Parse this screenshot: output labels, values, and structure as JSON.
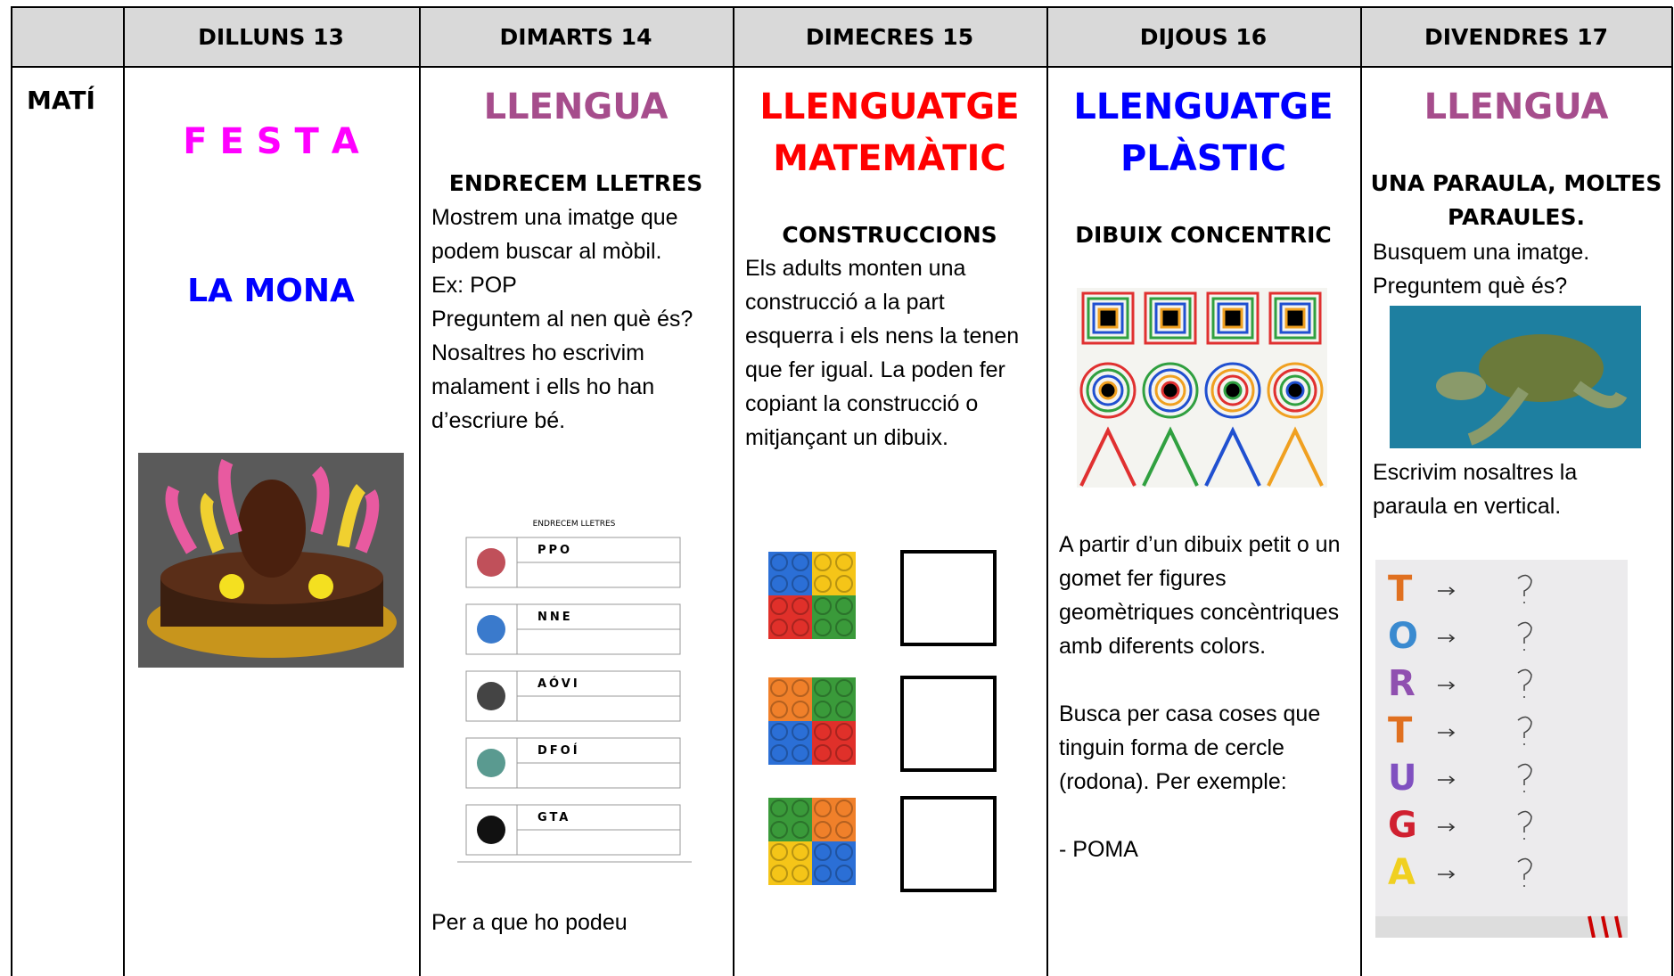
{
  "header": {
    "days": [
      "DILLUNS 13",
      "DIMARTS 14",
      "DIMECRES 15",
      "DIJOUS 16",
      "DIVENDRES 17"
    ]
  },
  "rows": [
    {
      "label": "MATÍ",
      "cells": [
        {
          "title": "F E S T A",
          "subtitle": "LA  MONA"
        },
        {
          "subject": "LLENGUA",
          "activity": "ENDRECEM LLETRES",
          "text": [
            "Mostrem una imatge que podem buscar al mòbil.",
            "Ex: POP",
            "Preguntem al nen què és? Nosaltres ho escrivim malament i ells ho han d’escriure bé."
          ],
          "worksheet": {
            "title": "ENDRECEM LLETRES",
            "words": [
              "PPO",
              "NNE",
              "AÓVI",
              "DFOÍ",
              "GTA"
            ]
          },
          "footer": "Per a que ho podeu"
        },
        {
          "subject": "LLENGUATGE MATEMÀTIC",
          "activity": "CONSTRUCCIONS",
          "text": [
            "Els adults monten una construcció a la part esquerra i els nens la tenen que fer igual. La poden fer copiant la construcció o mitjançant un dibuix."
          ]
        },
        {
          "subject": "LLENGUATGE PLÀSTIC",
          "activity": "DIBUIX CONCENTRIC",
          "text": [
            "A partir d’un dibuix petit o un gomet fer figures geomètriques concèntriques amb diferents colors.",
            "Busca per casa coses que tinguin forma de cercle (rodona). Per exemple:",
            "- POMA"
          ]
        },
        {
          "subject": "LLENGUA",
          "activity": "UNA PARAULA, MOLTES PARAULES.",
          "text": [
            "Busquem una imatge. Preguntem què és?",
            "Escrivim nosaltres la paraula en vertical."
          ],
          "letters": [
            "T",
            "O",
            "R",
            "T",
            "U",
            "G",
            "A"
          ]
        }
      ]
    }
  ]
}
